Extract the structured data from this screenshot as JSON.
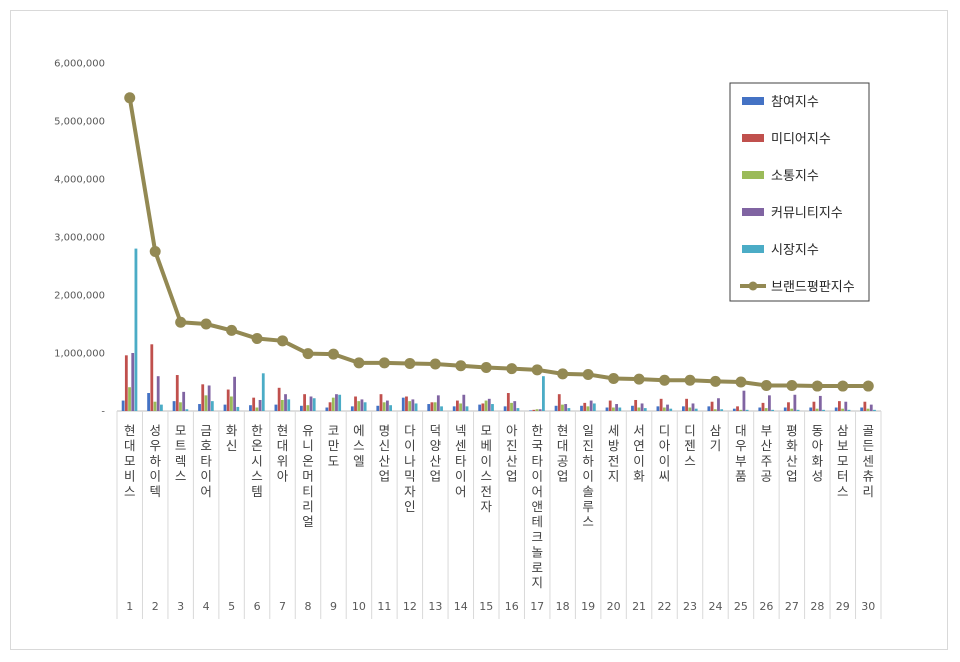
{
  "chart_data": {
    "type": "bar",
    "title": "",
    "xlabel": "",
    "ylabel": "",
    "ylim": [
      0,
      6000000
    ],
    "y_ticks": [
      "-",
      "1,000,000",
      "2,000,000",
      "3,000,000",
      "4,000,000",
      "5,000,000",
      "6,000,000"
    ],
    "grid": false,
    "legend_position": "top-right",
    "ranks": [
      "1",
      "2",
      "3",
      "4",
      "5",
      "6",
      "7",
      "8",
      "9",
      "10",
      "11",
      "12",
      "13",
      "14",
      "15",
      "16",
      "17",
      "18",
      "19",
      "20",
      "21",
      "22",
      "23",
      "24",
      "25",
      "26",
      "27",
      "28",
      "29",
      "30"
    ],
    "categories": [
      "현대모비스",
      "성우하이텍",
      "모트렉스",
      "금호타이어",
      "화신",
      "한온시스템",
      "현대위아",
      "유니온머티리얼",
      "코만도",
      "에스엘",
      "명신산업",
      "다이나믹자인",
      "덕양산업",
      "넥센타이어",
      "모베이스전자",
      "아진산업",
      "한국타이어앤테크놀로지",
      "현대공업",
      "일진하이솔루스",
      "세방전지",
      "서연이화",
      "디아이씨",
      "디젠스",
      "삼기",
      "대우부품",
      "부산주공",
      "평화산업",
      "동아화성",
      "삼보모터스",
      "골든센츄리"
    ],
    "series": [
      {
        "name": "참여지수",
        "color": "#4472c4",
        "chart": "bar",
        "values": [
          180000,
          310000,
          170000,
          120000,
          110000,
          100000,
          110000,
          90000,
          60000,
          80000,
          90000,
          230000,
          120000,
          80000,
          110000,
          80000,
          10000,
          90000,
          90000,
          60000,
          90000,
          80000,
          80000,
          80000,
          40000,
          60000,
          60000,
          60000,
          60000,
          60000
        ]
      },
      {
        "name": "미디어지수",
        "color": "#c0504d",
        "chart": "bar",
        "values": [
          960000,
          1150000,
          620000,
          460000,
          370000,
          230000,
          400000,
          290000,
          150000,
          250000,
          290000,
          250000,
          150000,
          180000,
          130000,
          310000,
          20000,
          290000,
          140000,
          180000,
          190000,
          210000,
          210000,
          160000,
          80000,
          140000,
          150000,
          160000,
          170000,
          160000
        ]
      },
      {
        "name": "소통지수",
        "color": "#9bbb59",
        "chart": "bar",
        "values": [
          410000,
          160000,
          150000,
          270000,
          250000,
          60000,
          190000,
          100000,
          230000,
          170000,
          150000,
          170000,
          150000,
          130000,
          180000,
          140000,
          30000,
          110000,
          80000,
          60000,
          60000,
          60000,
          60000,
          30000,
          20000,
          50000,
          40000,
          40000,
          40000,
          40000
        ]
      },
      {
        "name": "커뮤니티지수",
        "color": "#8064a2",
        "chart": "bar",
        "values": [
          1000000,
          600000,
          330000,
          440000,
          590000,
          190000,
          290000,
          250000,
          290000,
          200000,
          180000,
          200000,
          270000,
          280000,
          210000,
          170000,
          30000,
          120000,
          180000,
          120000,
          130000,
          110000,
          130000,
          220000,
          350000,
          270000,
          280000,
          260000,
          160000,
          110000
        ]
      },
      {
        "name": "시장지수",
        "color": "#4bacc6",
        "chart": "bar",
        "values": [
          2800000,
          110000,
          30000,
          170000,
          70000,
          650000,
          200000,
          220000,
          280000,
          150000,
          100000,
          130000,
          80000,
          80000,
          120000,
          50000,
          600000,
          50000,
          130000,
          60000,
          50000,
          40000,
          40000,
          30000,
          20000,
          20000,
          20000,
          20000,
          20000,
          20000
        ]
      },
      {
        "name": "브랜드평판지수",
        "color": "#938953",
        "chart": "line",
        "values": [
          5400000,
          2750000,
          1530000,
          1500000,
          1390000,
          1250000,
          1210000,
          990000,
          980000,
          830000,
          830000,
          820000,
          810000,
          780000,
          750000,
          730000,
          710000,
          640000,
          630000,
          560000,
          550000,
          530000,
          530000,
          510000,
          500000,
          440000,
          440000,
          430000,
          430000,
          430000
        ]
      }
    ]
  }
}
